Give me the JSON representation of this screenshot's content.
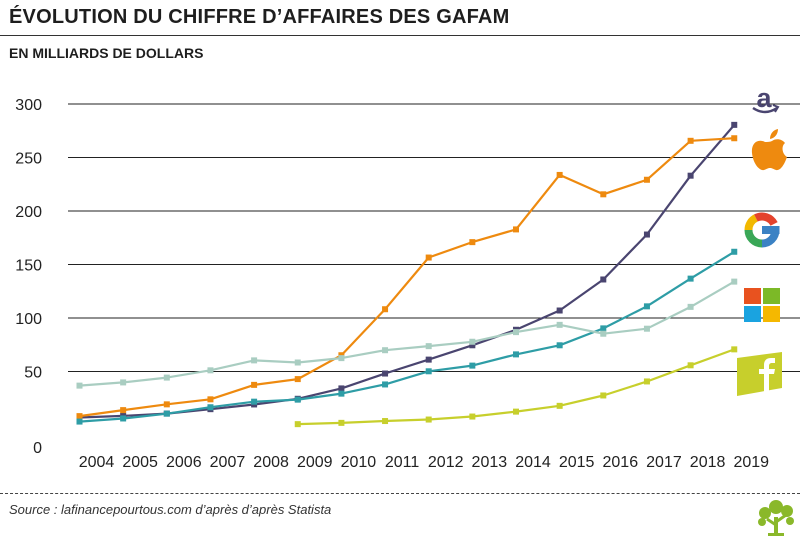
{
  "header": {
    "title": "ÉVOLUTION DU CHIFFRE D’AFFAIRES DES GAFAM",
    "subtitle": "EN MILLIARDS DE DOLLARS"
  },
  "footer": {
    "source": "Source : lafinancepourtous.com d’après d’après Statista"
  },
  "colors": {
    "amazon": "#4a4570",
    "apple": "#ee8a0f",
    "google": "#2e9da6",
    "microsoft": "#a9cdc1",
    "facebook": "#c7cf2c",
    "gridline": "#222222"
  },
  "logos": {
    "amazon": "amazon-logo-icon",
    "apple": "apple-logo-icon",
    "google": "google-logo-icon",
    "microsoft": "microsoft-logo-icon",
    "facebook": "facebook-logo-icon",
    "source": "tree-logo-icon"
  },
  "chart_data": {
    "type": "line",
    "x": [
      "2004",
      "2005",
      "2006",
      "2007",
      "2008",
      "2009",
      "2010",
      "2011",
      "2012",
      "2013",
      "2014",
      "2015",
      "2016",
      "2017",
      "2018",
      "2019"
    ],
    "ylim": [
      0,
      300
    ],
    "yticks": [
      0,
      50,
      100,
      150,
      200,
      250,
      300
    ],
    "grid": "horizontal",
    "series": [
      {
        "key": "amazon",
        "values": [
          7,
          8.5,
          10.7,
          14.8,
          19.2,
          24.5,
          34.2,
          48.1,
          61.1,
          74.5,
          89,
          107,
          136,
          178,
          233,
          280.5
        ]
      },
      {
        "key": "apple",
        "values": [
          8.3,
          13.9,
          19.3,
          24,
          37.5,
          42.9,
          65.2,
          108.2,
          156.5,
          170.9,
          182.8,
          233.7,
          215.6,
          229.2,
          265.6,
          268
        ]
      },
      {
        "key": "google",
        "values": [
          3.2,
          6.1,
          10.6,
          16.6,
          21.8,
          23.7,
          29.3,
          37.9,
          50.2,
          55.5,
          66,
          74.5,
          90.3,
          110.9,
          136.8,
          161.9
        ]
      },
      {
        "key": "microsoft",
        "values": [
          36.8,
          39.8,
          44.3,
          51.1,
          60.4,
          58.4,
          62.5,
          69.9,
          73.7,
          77.8,
          86.8,
          93.6,
          85.3,
          90,
          110.4,
          134
        ]
      },
      {
        "key": "facebook",
        "values": [
          null,
          null,
          null,
          null,
          null,
          0.8,
          2,
          3.7,
          5.1,
          7.9,
          12.5,
          17.9,
          27.6,
          40.7,
          55.8,
          70.7
        ]
      }
    ]
  }
}
